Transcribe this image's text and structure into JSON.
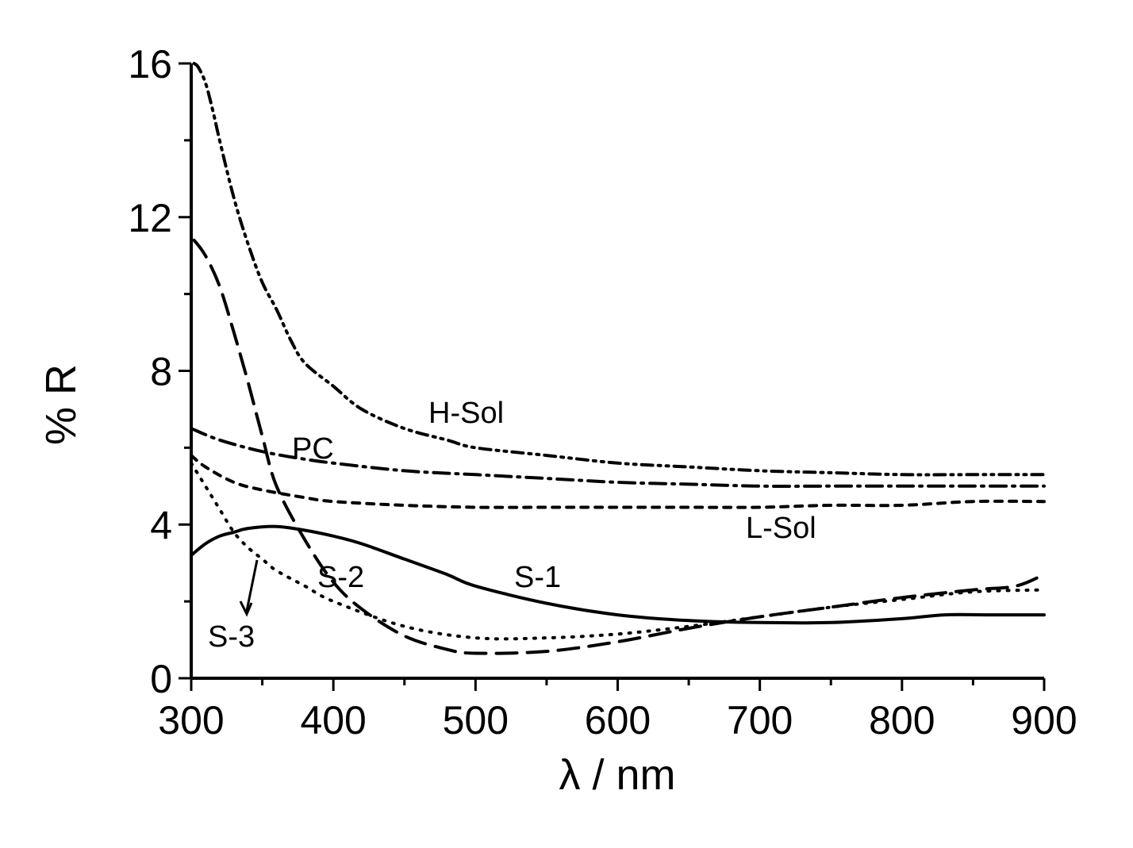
{
  "chart_data": {
    "type": "line",
    "title": "",
    "xlabel": "λ / nm",
    "ylabel": "% R",
    "xlim": [
      300,
      900
    ],
    "ylim": [
      0,
      16
    ],
    "xticks": [
      300,
      400,
      500,
      600,
      700,
      800,
      900
    ],
    "yticks": [
      0,
      4,
      8,
      12,
      16
    ],
    "grid": false,
    "series": [
      {
        "name": "H-Sol",
        "dash": "dash-dot-dot",
        "x": [
          302,
          305,
          310,
          315,
          320,
          330,
          340,
          350,
          360,
          370,
          380,
          400,
          420,
          450,
          480,
          500,
          550,
          600,
          650,
          700,
          750,
          800,
          850,
          900
        ],
        "y": [
          16.0,
          15.9,
          15.5,
          14.8,
          14.0,
          12.5,
          11.3,
          10.3,
          9.6,
          8.8,
          8.2,
          7.6,
          7.0,
          6.5,
          6.2,
          6.0,
          5.8,
          5.6,
          5.5,
          5.4,
          5.35,
          5.3,
          5.3,
          5.3
        ]
      },
      {
        "name": "PC",
        "dash": "dash-dot",
        "x": [
          300,
          320,
          350,
          380,
          400,
          450,
          500,
          550,
          600,
          650,
          700,
          750,
          800,
          850,
          900
        ],
        "y": [
          6.5,
          6.2,
          5.9,
          5.7,
          5.6,
          5.4,
          5.3,
          5.2,
          5.1,
          5.05,
          5.0,
          5.0,
          5.0,
          5.0,
          5.0
        ]
      },
      {
        "name": "L-Sol",
        "dash": "short-dash",
        "x": [
          300,
          310,
          330,
          350,
          380,
          400,
          450,
          500,
          550,
          600,
          650,
          700,
          750,
          800,
          850,
          900
        ],
        "y": [
          5.8,
          5.5,
          5.1,
          4.9,
          4.7,
          4.6,
          4.5,
          4.45,
          4.45,
          4.45,
          4.45,
          4.45,
          4.5,
          4.5,
          4.6,
          4.6
        ]
      },
      {
        "name": "S-1",
        "dash": "solid",
        "x": [
          300,
          310,
          320,
          330,
          340,
          360,
          380,
          400,
          420,
          450,
          480,
          500,
          550,
          600,
          650,
          700,
          750,
          800,
          830,
          860,
          900
        ],
        "y": [
          3.2,
          3.5,
          3.7,
          3.8,
          3.9,
          3.95,
          3.85,
          3.7,
          3.5,
          3.1,
          2.7,
          2.4,
          1.95,
          1.65,
          1.5,
          1.45,
          1.45,
          1.55,
          1.65,
          1.65,
          1.65
        ]
      },
      {
        "name": "S-2",
        "dash": "long-dash",
        "x": [
          302,
          310,
          320,
          330,
          340,
          350,
          360,
          380,
          400,
          420,
          450,
          480,
          500,
          550,
          600,
          650,
          700,
          750,
          800,
          850,
          880,
          900
        ],
        "y": [
          11.4,
          11.0,
          10.2,
          9.0,
          7.7,
          6.3,
          5.0,
          3.6,
          2.5,
          1.8,
          1.1,
          0.75,
          0.65,
          0.7,
          0.95,
          1.3,
          1.6,
          1.85,
          2.1,
          2.3,
          2.4,
          2.7
        ]
      },
      {
        "name": "S-3",
        "dash": "dotted",
        "x": [
          300,
          310,
          320,
          330,
          340,
          350,
          360,
          380,
          400,
          450,
          500,
          550,
          600,
          650,
          700,
          750,
          800,
          850,
          900
        ],
        "y": [
          5.6,
          5.0,
          4.4,
          3.8,
          3.4,
          3.1,
          2.8,
          2.4,
          2.0,
          1.35,
          1.05,
          1.05,
          1.15,
          1.35,
          1.6,
          1.85,
          2.05,
          2.25,
          2.3
        ]
      }
    ]
  }
}
